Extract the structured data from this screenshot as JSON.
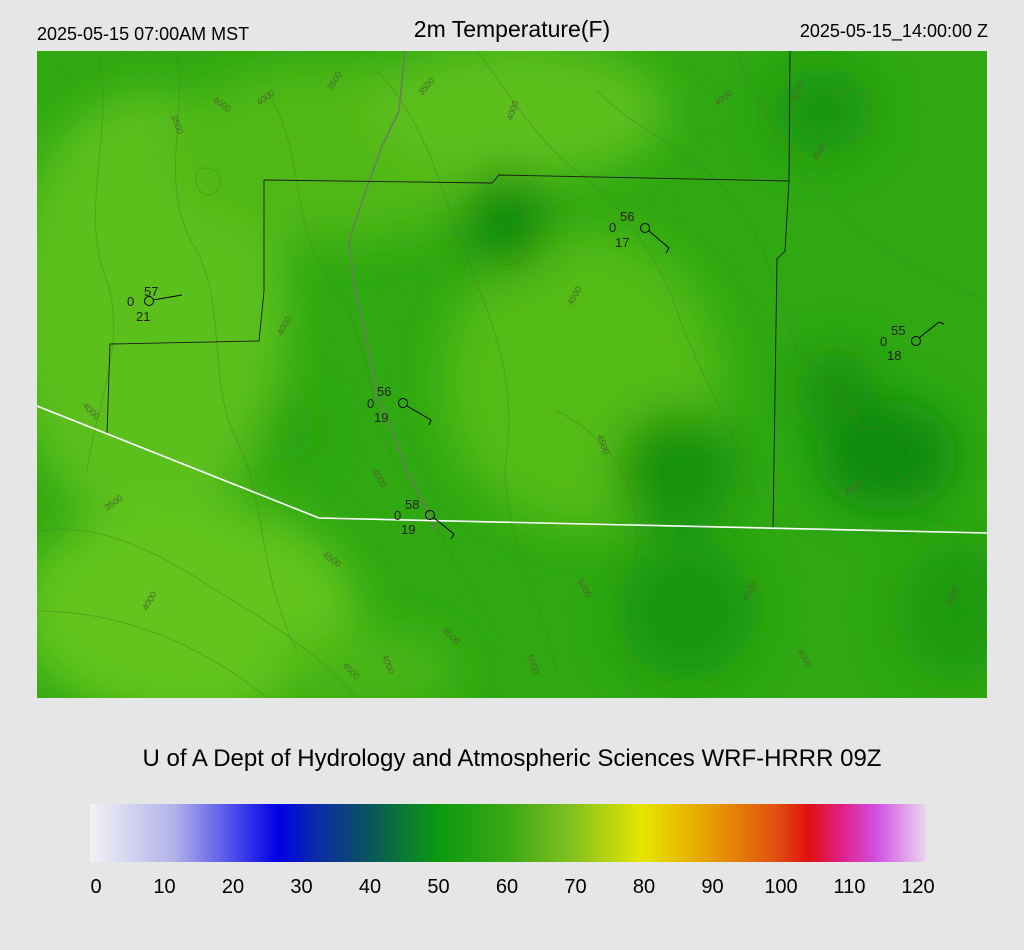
{
  "header": {
    "local_time": "2025-05-15 07:00AM MST",
    "title": "2m Temperature(F)",
    "utc_time": "2025-05-15_14:00:00 Z"
  },
  "credit": "U of A Dept of Hydrology and Atmospheric Sciences WRF-HRRR 09Z",
  "colorbar": {
    "ticks": [
      "0",
      "10",
      "20",
      "30",
      "40",
      "50",
      "60",
      "70",
      "80",
      "90",
      "100",
      "110",
      "120"
    ]
  },
  "stations": [
    {
      "temp": "57",
      "wind": "0",
      "dew": "21"
    },
    {
      "temp": "56",
      "wind": "0",
      "dew": "17"
    },
    {
      "temp": "55",
      "wind": "0",
      "dew": "18"
    },
    {
      "temp": "56",
      "wind": "0",
      "dew": "19"
    },
    {
      "temp": "58",
      "wind": "0",
      "dew": "19"
    }
  ],
  "elevation_labels": [
    "4000",
    "4000",
    "3500",
    "3500",
    "3500",
    "4000",
    "4000",
    "3500",
    "3500",
    "4000",
    "4000",
    "4500",
    "4000",
    "3500",
    "4500",
    "5000",
    "4500",
    "4000",
    "4500",
    "4000",
    "5000",
    "4500",
    "4000",
    "4500",
    "4500",
    "5000"
  ]
}
